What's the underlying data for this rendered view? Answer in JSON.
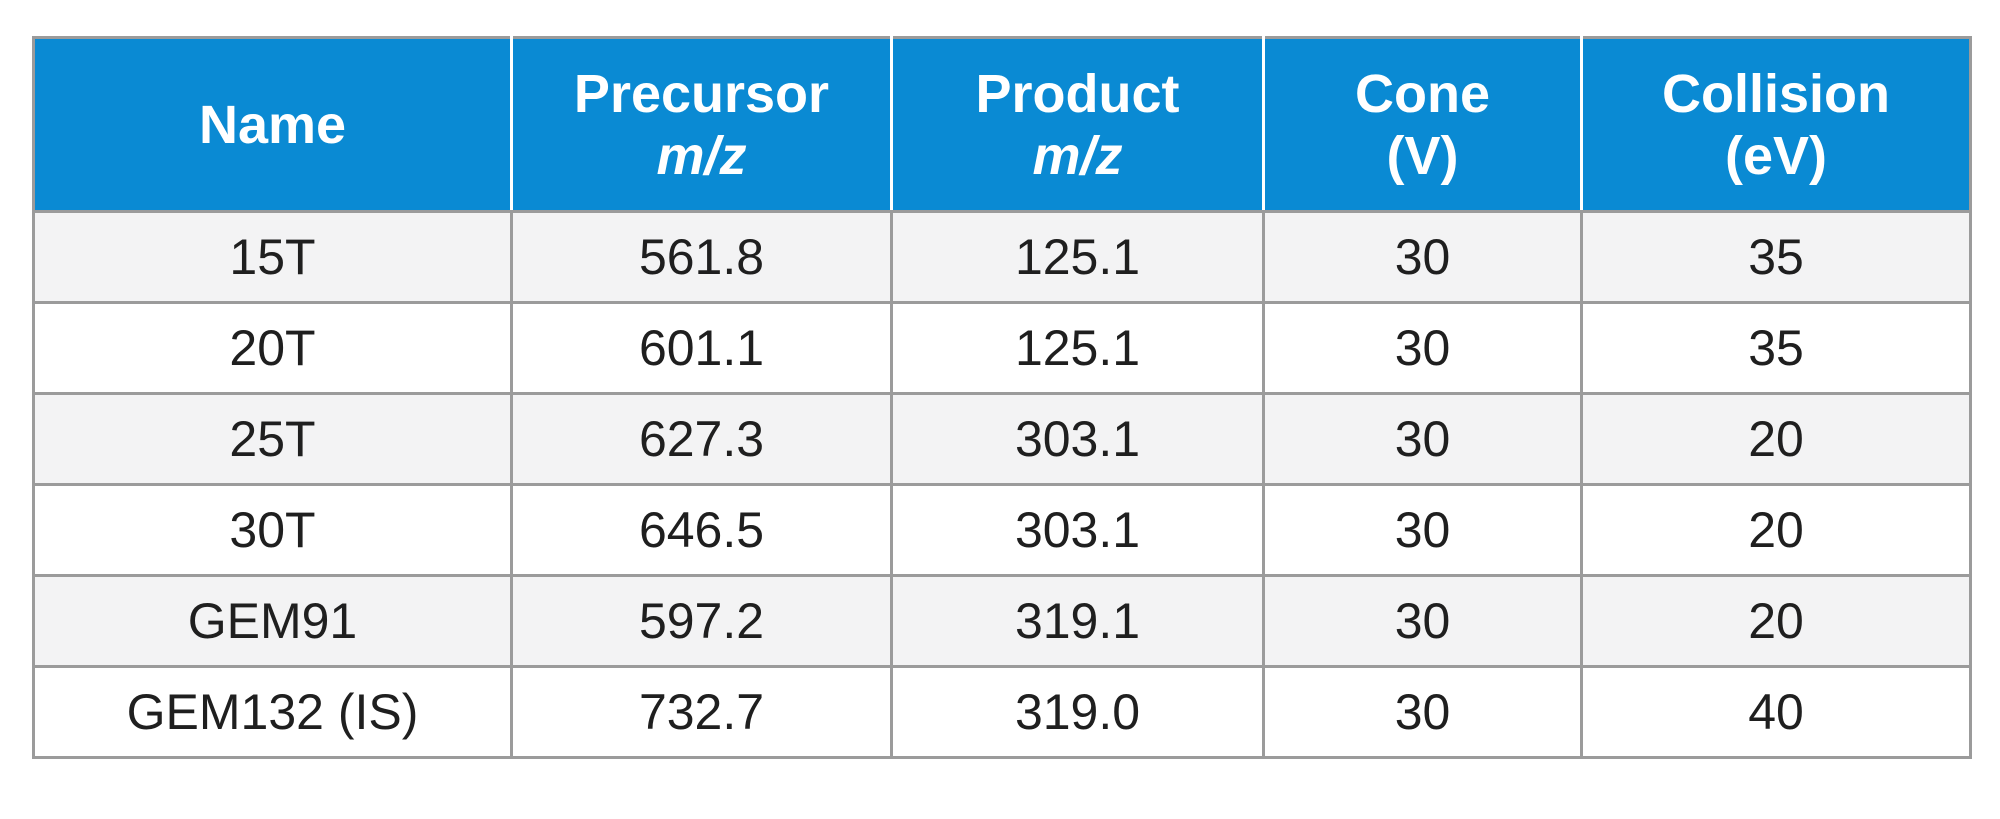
{
  "table": {
    "headers": [
      {
        "line1": "Name",
        "line2": ""
      },
      {
        "line1": "Precursor",
        "line2": "m/z"
      },
      {
        "line1": "Product",
        "line2": "m/z"
      },
      {
        "line1": "Cone",
        "line2": "(V)"
      },
      {
        "line1": "Collision",
        "line2": "(eV)"
      }
    ],
    "rows": [
      [
        "15T",
        "561.8",
        "125.1",
        "30",
        "35"
      ],
      [
        "20T",
        "601.1",
        "125.1",
        "30",
        "35"
      ],
      [
        "25T",
        "627.3",
        "303.1",
        "30",
        "20"
      ],
      [
        "30T",
        "646.5",
        "303.1",
        "30",
        "20"
      ],
      [
        "GEM91",
        "597.2",
        "319.1",
        "30",
        "20"
      ],
      [
        "GEM132 (IS)",
        "732.7",
        "319.0",
        "30",
        "40"
      ]
    ]
  },
  "colors": {
    "header_bg": "#0a8ad3",
    "header_text": "#ffffff",
    "stripe_bg": "#f3f3f4",
    "border": "#9b9b9b"
  }
}
